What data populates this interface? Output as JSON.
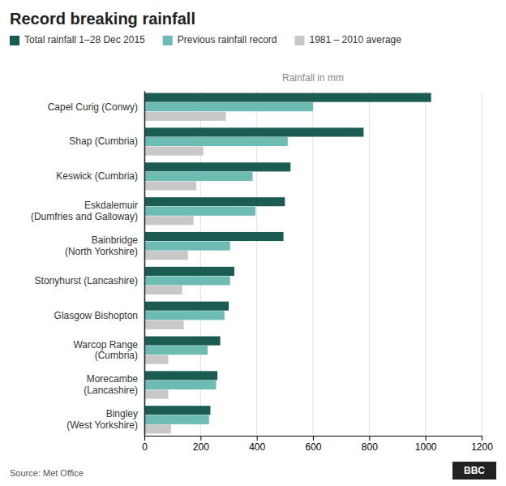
{
  "chart_data": {
    "type": "bar",
    "orientation": "horizontal",
    "title": "Record breaking rainfall",
    "xlabel": "Rainfall in mm",
    "annotations": [
      "Source: Met Office",
      "BBC"
    ],
    "categories": [
      "Capel Curig (Conwy)",
      "Shap (Cumbria)",
      "Keswick (Cumbria)",
      "Eskdalemuir\n(Dumfries and Galloway)",
      "Bainbridge\n(North Yorkshire)",
      "Stonyhurst (Lancashire)",
      "Glasgow Bishopton",
      "Warcop Range\n(Cumbria)",
      "Morecambe\n(Lancashire)",
      "Bingley\n(West Yorkshire)"
    ],
    "series": [
      {
        "name": "Total rainfall 1–28 Dec 2015",
        "color": "#1a5c52",
        "values": [
          1020,
          780,
          520,
          500,
          495,
          320,
          300,
          270,
          260,
          235
        ]
      },
      {
        "name": "Previous rainfall record",
        "color": "#6dbcb4",
        "values": [
          600,
          510,
          385,
          395,
          305,
          305,
          285,
          225,
          255,
          230
        ]
      },
      {
        "name": "1981 – 2010 average",
        "color": "#c8c8c8",
        "values": [
          290,
          210,
          185,
          175,
          155,
          135,
          140,
          85,
          85,
          95
        ]
      }
    ],
    "xlim": [
      0,
      1200
    ],
    "xticks": [
      0,
      200,
      400,
      600,
      800,
      1000,
      1200
    ],
    "grid": true,
    "legend": "top"
  }
}
